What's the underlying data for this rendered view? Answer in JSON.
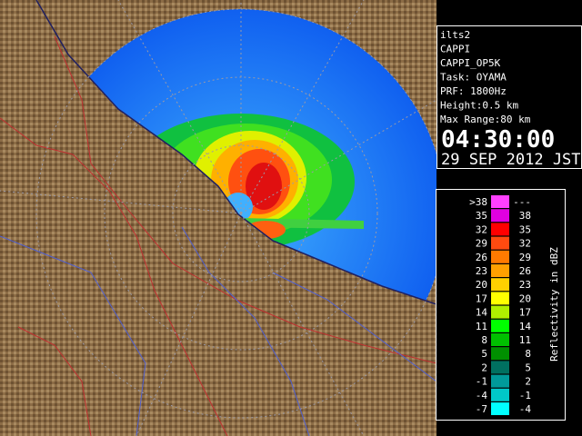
{
  "info": {
    "lines": [
      "ilts2",
      "CAPPI",
      "CAPPI_OP5K",
      "Task: OYAMA",
      "PRF: 1800Hz",
      "Height:0.5 km",
      "Max Range:80 km"
    ],
    "time": "04:30:00",
    "date": "29 SEP 2012 JST"
  },
  "legend": {
    "title": "Reflectivity in dBZ",
    "rows": [
      {
        "low": ">38",
        "high": "---",
        "color": "#ff40ff"
      },
      {
        "low": "35",
        "high": "38",
        "color": "#e000e0"
      },
      {
        "low": "32",
        "high": "35",
        "color": "#ff0000"
      },
      {
        "low": "29",
        "high": "32",
        "color": "#ff4a10"
      },
      {
        "low": "26",
        "high": "29",
        "color": "#ff7a00"
      },
      {
        "low": "23",
        "high": "26",
        "color": "#ffa000"
      },
      {
        "low": "20",
        "high": "23",
        "color": "#ffd000"
      },
      {
        "low": "17",
        "high": "20",
        "color": "#ffff00"
      },
      {
        "low": "14",
        "high": "17",
        "color": "#b0f000"
      },
      {
        "low": "11",
        "high": "14",
        "color": "#00ff00"
      },
      {
        "low": "8",
        "high": "11",
        "color": "#00c000"
      },
      {
        "low": "5",
        "high": "8",
        "color": "#009000"
      },
      {
        "low": "2",
        "high": "5",
        "color": "#007060"
      },
      {
        "low": "-1",
        "high": "2",
        "color": "#009a9a"
      },
      {
        "low": "-4",
        "high": "-1",
        "color": "#00c8c8"
      },
      {
        "low": "-7",
        "high": "-4",
        "color": "#00ffff"
      }
    ]
  }
}
